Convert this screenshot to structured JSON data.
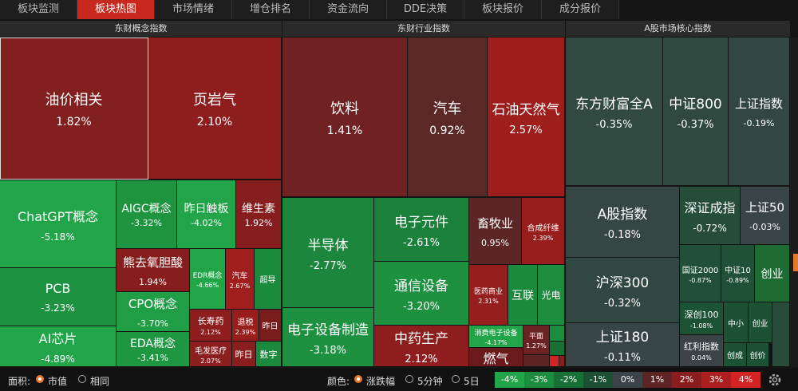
{
  "tabs": [
    "板块监测",
    "板块热图",
    "市场情绪",
    "增仓排名",
    "资金流向",
    "DDE决策",
    "板块报价",
    "成分报价"
  ],
  "sections": [
    {
      "title": "东财概念指数",
      "tiles": [
        {
          "name": "油价相关",
          "change": "1.82%"
        },
        {
          "name": "页岩气",
          "change": "2.10%"
        },
        {
          "name": "ChatGPT概念",
          "change": "-5.18%"
        },
        {
          "name": "AIGC概念",
          "change": "-3.32%"
        },
        {
          "name": "昨日触板",
          "change": "-4.02%"
        },
        {
          "name": "维生素",
          "change": "1.92%"
        },
        {
          "name": "熊去氧胆酸",
          "change": "1.94%"
        },
        {
          "name": "EDR概念",
          "change": "-4.66%"
        },
        {
          "name": "汽车",
          "change": "2.67%"
        },
        {
          "name": "超导",
          "color": "#1b8a3c"
        },
        {
          "name": "CPO概念",
          "change": "-3.70%"
        },
        {
          "name": "EDA概念",
          "change": "-3.41%"
        },
        {
          "name": "长寿药",
          "change": "2.12%"
        },
        {
          "name": "退税",
          "change": "2.39%"
        },
        {
          "name": "昨日",
          "color": "#7a1c1c"
        },
        {
          "name": "毛发医疗",
          "change": "2.07%"
        },
        {
          "name": "昨日",
          "color": "#8a1e1e"
        },
        {
          "name": "数字",
          "color": "#1b8a3c"
        },
        {
          "name": "PCB",
          "change": "-3.23%"
        },
        {
          "name": "AI芯片",
          "change": "-4.89%"
        }
      ]
    },
    {
      "title": "东财行业指数",
      "tiles": [
        {
          "name": "饮料",
          "change": "1.41%"
        },
        {
          "name": "汽车",
          "change": "0.92%"
        },
        {
          "name": "石油天然气",
          "change": "2.57%"
        },
        {
          "name": "半导体",
          "change": "-2.77%"
        },
        {
          "name": "电子设备制造",
          "change": "-3.18%"
        },
        {
          "name": "电子元件",
          "change": "-2.61%"
        },
        {
          "name": "通信设备",
          "change": "-3.20%"
        },
        {
          "name": "中药生产",
          "change": "2.12%"
        },
        {
          "name": "畜牧业",
          "change": "0.95%"
        },
        {
          "name": "合成纤维",
          "change": "2.39%"
        },
        {
          "name": "医药商业",
          "change": "2.31%"
        },
        {
          "name": "互联",
          "color": "#1b8a3c"
        },
        {
          "name": "光电",
          "color": "#1c8c3e"
        },
        {
          "name": "消费电子设备",
          "change": "-4.17%"
        },
        {
          "name": "燃气",
          "color": "#6a1a1a"
        },
        {
          "name": "平面",
          "change": "1.27%"
        }
      ]
    },
    {
      "title": "A股市场核心指数",
      "tiles": [
        {
          "name": "东方财富全A",
          "change": "-0.35%"
        },
        {
          "name": "中证800",
          "change": "-0.37%"
        },
        {
          "name": "上证指数",
          "change": "-0.19%"
        },
        {
          "name": "A股指数",
          "change": "-0.18%"
        },
        {
          "name": "沪深300",
          "change": "-0.32%"
        },
        {
          "name": "上证180",
          "change": "-0.11%"
        },
        {
          "name": "深证成指",
          "change": "-0.72%"
        },
        {
          "name": "上证50",
          "change": "-0.03%"
        },
        {
          "name": "国证2000",
          "change": "-0.87%"
        },
        {
          "name": "中证10",
          "change": "-0.89%"
        },
        {
          "name": "创业",
          "color": "#1c6c34"
        },
        {
          "name": "深创100",
          "change": "-1.08%"
        },
        {
          "name": "中小",
          "color": "#1d5134"
        },
        {
          "name": "创业",
          "color": "#1d5134"
        },
        {
          "name": "红利指数",
          "change": "0.04%"
        },
        {
          "name": "创成",
          "color": "#1d5134"
        },
        {
          "name": "创价",
          "color": "#1d5134"
        }
      ]
    }
  ],
  "footer": {
    "area_label": "面积:",
    "area_options": [
      "市值",
      "相同"
    ],
    "color_label": "颜色:",
    "color_options": [
      "涨跌幅",
      "5分钟",
      "5日"
    ]
  },
  "legend": [
    {
      "label": "-4%",
      "color": "#22a548"
    },
    {
      "label": "-3%",
      "color": "#1c8c3e"
    },
    {
      "label": "-2%",
      "color": "#177034"
    },
    {
      "label": "-1%",
      "color": "#1d5134"
    },
    {
      "label": "0%",
      "color": "#3a4448"
    },
    {
      "label": "1%",
      "color": "#5e2424"
    },
    {
      "label": "2%",
      "color": "#8a1e1e"
    },
    {
      "label": "3%",
      "color": "#ad1e1e"
    },
    {
      "label": "4%",
      "color": "#d42323"
    }
  ]
}
